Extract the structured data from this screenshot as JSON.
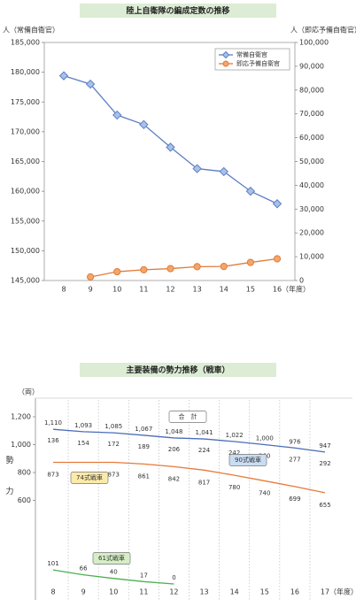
{
  "chart_data": [
    {
      "type": "line",
      "title": "陸上自衛隊の編成定数の推移",
      "ylabel": "人（常備自衛官）",
      "y2label": "人（即応予備自衛官）",
      "xlabel": "（年度）",
      "categories": [
        "8",
        "9",
        "10",
        "11",
        "12",
        "13",
        "14",
        "15",
        "16"
      ],
      "series": [
        {
          "name": "常備自衛官",
          "color": "#5b7fc4",
          "marker": "diamond",
          "values": [
            179400,
            178000,
            172800,
            171200,
            167400,
            163800,
            163300,
            160000,
            157900
          ]
        },
        {
          "name": "即応予備自衛官",
          "color": "#e07b39",
          "marker": "circle",
          "axis": "y2",
          "values": [
            null,
            1500,
            3700,
            4500,
            5000,
            5800,
            5900,
            7600,
            9100
          ]
        }
      ],
      "ylim": [
        145000,
        185000
      ],
      "yticks": [
        {
          "value": 145000,
          "label": "145,000"
        },
        {
          "value": 150000,
          "label": "150,000"
        },
        {
          "value": 155000,
          "label": "155,000"
        },
        {
          "value": 160000,
          "label": "160,000"
        },
        {
          "value": 165000,
          "label": "165,000"
        },
        {
          "value": 170000,
          "label": "170,000"
        },
        {
          "value": 175000,
          "label": "175,000"
        },
        {
          "value": 180000,
          "label": "180,000"
        },
        {
          "value": 185000,
          "label": "185,000"
        }
      ],
      "y2lim": [
        0,
        100000
      ],
      "y2ticks": [
        0,
        {
          "value": 10000,
          "label": "10,000"
        },
        {
          "value": 20000,
          "label": "20,000"
        },
        {
          "value": 30000,
          "label": "30,000"
        },
        {
          "value": 40000,
          "label": "40,000"
        },
        {
          "value": 50000,
          "label": "50,000"
        },
        {
          "value": 60000,
          "label": "60,000"
        },
        {
          "value": 70000,
          "label": "70,000"
        },
        {
          "value": 80000,
          "label": "80,000"
        },
        {
          "value": 90000,
          "label": "90,000"
        },
        {
          "value": 100000,
          "label": "100,000"
        }
      ],
      "legend": "upper right"
    },
    {
      "type": "line",
      "title": "主要装備の勢力推移（戦車）",
      "yunit": "（両）",
      "ylabel": "勢力",
      "xlabel": "（年度）",
      "categories": [
        "8",
        "9",
        "10",
        "11",
        "12",
        "13",
        "14",
        "15",
        "16",
        "17"
      ],
      "series": [
        {
          "name": "合　計",
          "color": "#4a6db8",
          "box_color": "#ffffff",
          "values": [
            1110,
            1093,
            1085,
            1067,
            1048,
            1041,
            1022,
            1000,
            976,
            947
          ],
          "value_labels": [
            "1,110",
            "1,093",
            "1,085",
            "1,067",
            "1,048",
            "1,041",
            "1,022",
            "1,000",
            "976",
            "947"
          ]
        },
        {
          "name": "90式戦車",
          "color": "#4a6db8",
          "box_color": "#c9dcf2",
          "show_line": false,
          "values": [
            136,
            154,
            172,
            189,
            206,
            224,
            242,
            260,
            277,
            292
          ]
        },
        {
          "name": "74式戦車",
          "color": "#e8793a",
          "box_color": "#fbeaa8",
          "values": [
            873,
            873,
            873,
            861,
            842,
            817,
            780,
            740,
            699,
            655
          ]
        },
        {
          "name": "61式戦車",
          "color": "#4caf50",
          "box_color": "#d5eec6",
          "values": [
            101,
            66,
            40,
            17,
            0,
            null,
            null,
            null,
            null,
            null
          ]
        }
      ],
      "ylim": [
        0,
        1200
      ],
      "yticks": [
        600,
        800,
        {
          "value": 1000,
          "label": "1,000"
        },
        {
          "value": 1200,
          "label": "1,200"
        }
      ],
      "legend": "inline"
    }
  ]
}
